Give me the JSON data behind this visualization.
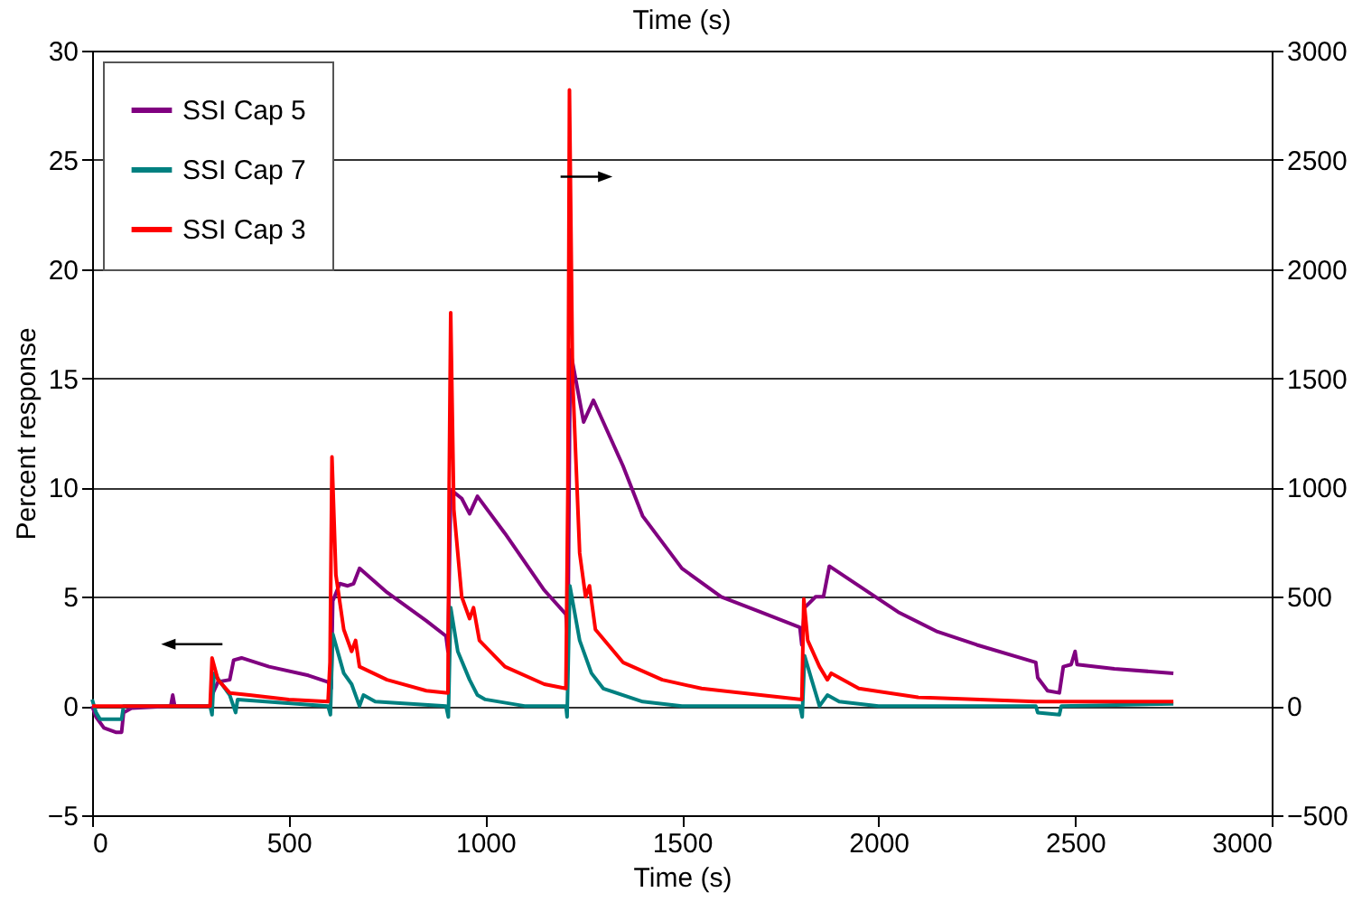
{
  "chart_data": {
    "type": "line",
    "title": "Time (s)",
    "xlabel": "Time (s)",
    "ylabel": "Percent response",
    "xlim": [
      0,
      3000
    ],
    "xticks": [
      0,
      500,
      1000,
      1500,
      2000,
      2500,
      3000
    ],
    "ylim": [
      -5,
      30
    ],
    "yticks": [
      -5,
      0,
      5,
      10,
      15,
      20,
      25,
      30
    ],
    "y2lim": [
      -500,
      3000
    ],
    "y2ticks": [
      -500,
      0,
      500,
      1000,
      1500,
      2000,
      2500,
      3000
    ],
    "grid": "y",
    "legend": "top left",
    "marker": "none",
    "line_style": "solid",
    "series": [
      {
        "name": "SSI Cap 5",
        "color": "#800080",
        "x": [
          0,
          10,
          30,
          60,
          75,
          80,
          100,
          200,
          205,
          210,
          300,
          305,
          320,
          350,
          360,
          380,
          450,
          550,
          600,
          608,
          612,
          630,
          650,
          665,
          680,
          750,
          850,
          900,
          905,
          912,
          940,
          960,
          980,
          1050,
          1150,
          1205,
          1210,
          1216,
          1250,
          1275,
          1350,
          1400,
          1500,
          1600,
          1700,
          1800,
          1805,
          1812,
          1840,
          1860,
          1875,
          1950,
          2050,
          2150,
          2250,
          2400,
          2405,
          2430,
          2460,
          2470,
          2490,
          2500,
          2505,
          2600,
          2750
        ],
        "values": [
          0,
          -0.5,
          -1.0,
          -1.2,
          -1.2,
          -0.3,
          -0.1,
          0,
          0.5,
          0,
          0,
          0.5,
          1.1,
          1.2,
          2.1,
          2.2,
          1.8,
          1.4,
          1.1,
          0.8,
          4.8,
          5.6,
          5.5,
          5.6,
          6.3,
          5.2,
          3.9,
          3.2,
          2.5,
          9.9,
          9.5,
          8.8,
          9.6,
          7.9,
          5.3,
          4.2,
          3.0,
          16.3,
          13.0,
          14.0,
          11.0,
          8.7,
          6.3,
          5.0,
          4.3,
          3.6,
          2.8,
          4.5,
          5.0,
          5.0,
          6.4,
          5.5,
          4.3,
          3.4,
          2.8,
          2.0,
          1.3,
          0.7,
          0.6,
          1.8,
          1.9,
          2.5,
          1.9,
          1.7,
          1.5
        ]
      },
      {
        "name": "SSI Cap 7",
        "color": "#008080",
        "x": [
          0,
          10,
          20,
          75,
          80,
          300,
          305,
          310,
          330,
          350,
          365,
          370,
          600,
          606,
          612,
          640,
          660,
          680,
          690,
          720,
          900,
          906,
          912,
          930,
          960,
          980,
          1000,
          1100,
          1205,
          1208,
          1215,
          1240,
          1270,
          1300,
          1400,
          1500,
          1800,
          1806,
          1812,
          1830,
          1850,
          1870,
          1900,
          2000,
          2400,
          2405,
          2460,
          2465,
          2750
        ],
        "values": [
          0.3,
          -0.3,
          -0.6,
          -0.6,
          0,
          0,
          -0.4,
          1.5,
          1.0,
          0.5,
          -0.3,
          0.3,
          0,
          -0.4,
          3.3,
          1.5,
          1.0,
          0,
          0.5,
          0.2,
          0,
          -0.5,
          4.5,
          2.5,
          1.2,
          0.5,
          0.3,
          0,
          0,
          -0.5,
          5.5,
          3.0,
          1.5,
          0.8,
          0.2,
          0,
          0,
          -0.5,
          2.3,
          1.2,
          0,
          0.5,
          0.2,
          0,
          0,
          -0.3,
          -0.4,
          0,
          0.1
        ]
      },
      {
        "name": "SSI Cap 3",
        "color": "#ff0000",
        "axis": "y2",
        "x": [
          0,
          300,
          305,
          320,
          350,
          400,
          500,
          600,
          605,
          610,
          620,
          640,
          660,
          670,
          680,
          750,
          850,
          905,
          908,
          912,
          920,
          940,
          960,
          970,
          985,
          1050,
          1150,
          1205,
          1210,
          1214,
          1222,
          1240,
          1255,
          1265,
          1280,
          1350,
          1450,
          1550,
          1700,
          1805,
          1810,
          1820,
          1850,
          1870,
          1880,
          1950,
          2100,
          2400,
          2750
        ],
        "values": [
          0,
          0,
          220,
          120,
          60,
          50,
          30,
          20,
          200,
          1140,
          600,
          350,
          250,
          300,
          180,
          120,
          70,
          60,
          1000,
          1800,
          900,
          500,
          400,
          450,
          300,
          180,
          100,
          80,
          1000,
          2820,
          1500,
          700,
          500,
          550,
          350,
          200,
          120,
          80,
          50,
          30,
          490,
          300,
          180,
          120,
          150,
          80,
          40,
          20,
          20
        ]
      }
    ]
  }
}
